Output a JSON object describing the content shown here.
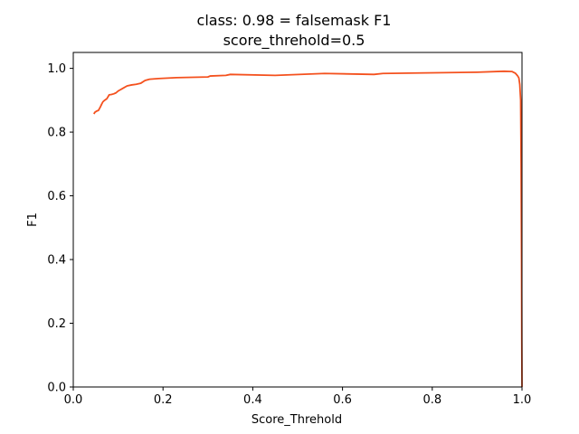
{
  "chart_data": {
    "type": "line",
    "title_line1": "class: 0.98 = falsemask F1",
    "title_line2": "score_threhold=0.5",
    "xlabel": "Score_Threhold",
    "ylabel": "F1",
    "xlim": [
      0.0,
      1.0
    ],
    "ylim": [
      0.0,
      1.05
    ],
    "grid": false,
    "x_ticks": [
      "0.0",
      "0.2",
      "0.4",
      "0.6",
      "0.8",
      "1.0"
    ],
    "y_ticks": [
      "0.0",
      "0.2",
      "0.4",
      "0.6",
      "0.8",
      "1.0"
    ],
    "series": [
      {
        "color": "#f4511e",
        "x": [
          0.046,
          0.048,
          0.052,
          0.056,
          0.06,
          0.063,
          0.066,
          0.07,
          0.075,
          0.08,
          0.085,
          0.09,
          0.095,
          0.1,
          0.105,
          0.11,
          0.12,
          0.13,
          0.14,
          0.15,
          0.16,
          0.17,
          0.19,
          0.23,
          0.3,
          0.305,
          0.34,
          0.35,
          0.45,
          0.56,
          0.67,
          0.69,
          0.9,
          0.96,
          0.978,
          0.985,
          0.99,
          0.993,
          0.995,
          0.997,
          0.998,
          0.999,
          0.9995,
          1.0
        ],
        "y": [
          0.857,
          0.862,
          0.866,
          0.868,
          0.878,
          0.887,
          0.895,
          0.9,
          0.905,
          0.917,
          0.918,
          0.92,
          0.923,
          0.929,
          0.933,
          0.937,
          0.945,
          0.948,
          0.95,
          0.953,
          0.962,
          0.966,
          0.968,
          0.971,
          0.973,
          0.976,
          0.978,
          0.981,
          0.978,
          0.984,
          0.981,
          0.984,
          0.988,
          0.991,
          0.99,
          0.985,
          0.977,
          0.97,
          0.95,
          0.9,
          0.7,
          0.4,
          0.15,
          0.0
        ]
      }
    ]
  }
}
